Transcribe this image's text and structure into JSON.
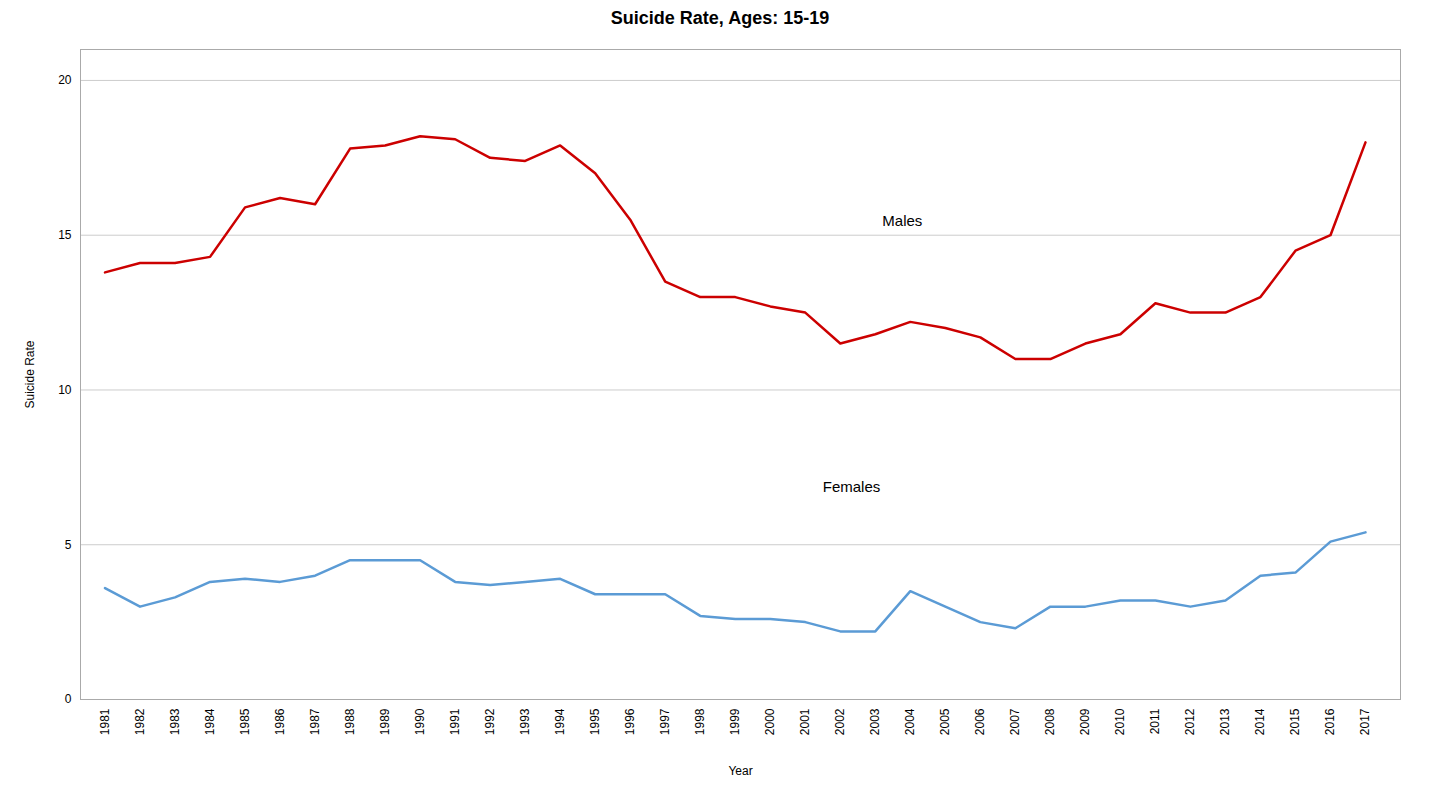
{
  "chart_data": {
    "type": "line",
    "title": "Suicide Rate, Ages: 15-19",
    "xlabel": "Year",
    "ylabel": "Suicide Rate",
    "x": [
      1981,
      1982,
      1983,
      1984,
      1985,
      1986,
      1987,
      1988,
      1989,
      1990,
      1991,
      1992,
      1993,
      1994,
      1995,
      1996,
      1997,
      1998,
      1999,
      2000,
      2001,
      2002,
      2003,
      2004,
      2005,
      2006,
      2007,
      2008,
      2009,
      2010,
      2011,
      2012,
      2013,
      2014,
      2015,
      2016,
      2017
    ],
    "series": [
      {
        "name": "Males",
        "color": "#CC0000",
        "values": [
          13.8,
          14.1,
          14.1,
          14.3,
          15.9,
          16.2,
          16.0,
          17.8,
          17.9,
          18.2,
          18.1,
          17.5,
          17.4,
          17.9,
          17.0,
          15.5,
          13.5,
          13.0,
          13.0,
          12.7,
          12.5,
          11.5,
          11.8,
          12.2,
          12.0,
          11.7,
          11.0,
          11.0,
          11.5,
          11.8,
          12.8,
          12.5,
          12.5,
          13.0,
          14.5,
          15.0,
          18.0
        ]
      },
      {
        "name": "Females",
        "color": "#5B9BD5",
        "values": [
          3.6,
          3.0,
          3.3,
          3.8,
          3.9,
          3.8,
          4.0,
          4.5,
          4.5,
          4.5,
          3.8,
          3.7,
          3.8,
          3.9,
          3.4,
          3.4,
          3.4,
          2.7,
          2.6,
          2.6,
          2.5,
          2.2,
          2.2,
          3.5,
          3.0,
          2.5,
          2.3,
          3.0,
          3.0,
          3.2,
          3.2,
          3.0,
          3.2,
          4.0,
          4.1,
          5.1,
          5.4
        ]
      }
    ],
    "annotations": [
      {
        "text": "Males",
        "x": 2003.2,
        "y": 15.3
      },
      {
        "text": "Females",
        "x": 2001.5,
        "y": 6.7
      }
    ],
    "xlim": [
      1980.3,
      2018.0
    ],
    "xticks": [
      1981,
      1982,
      1983,
      1984,
      1985,
      1986,
      1987,
      1988,
      1989,
      1990,
      1991,
      1992,
      1993,
      1994,
      1995,
      1996,
      1997,
      1998,
      1999,
      2000,
      2001,
      2002,
      2003,
      2004,
      2005,
      2006,
      2007,
      2008,
      2009,
      2010,
      2011,
      2012,
      2013,
      2014,
      2015,
      2016,
      2017
    ],
    "ylim": [
      0,
      21
    ],
    "yticks": [
      0,
      5,
      10,
      15,
      20
    ],
    "grid": true
  }
}
